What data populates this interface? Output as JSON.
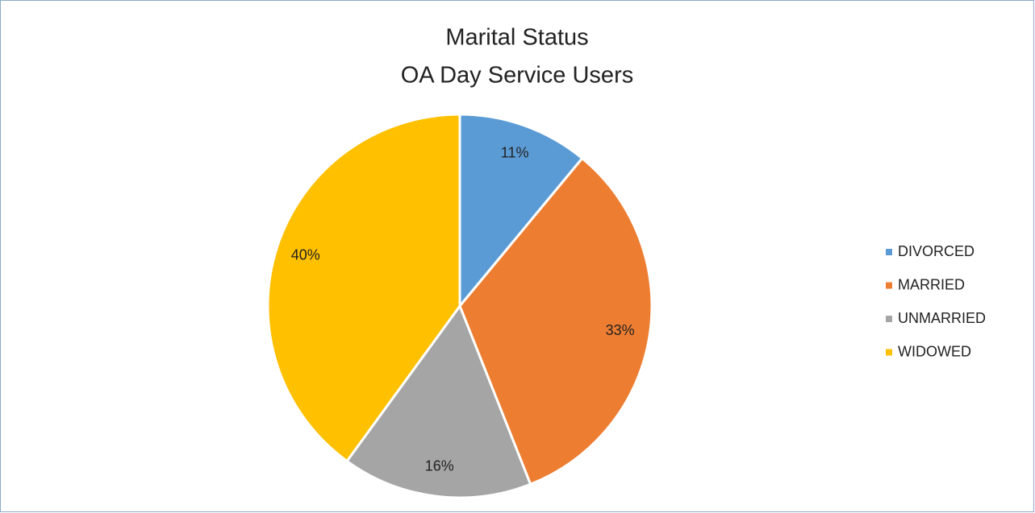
{
  "chart_data": {
    "type": "pie",
    "title": [
      "Marital Status",
      "OA Day Service Users"
    ],
    "categories": [
      "DIVORCED",
      "MARRIED",
      "UNMARRIED",
      "WIDOWED"
    ],
    "values": [
      11,
      33,
      16,
      40
    ],
    "value_labels": [
      "11%",
      "33%",
      "16%",
      "40%"
    ],
    "colors": [
      "#5b9bd5",
      "#ed7d31",
      "#a5a5a5",
      "#ffc000"
    ],
    "legend": "right"
  }
}
